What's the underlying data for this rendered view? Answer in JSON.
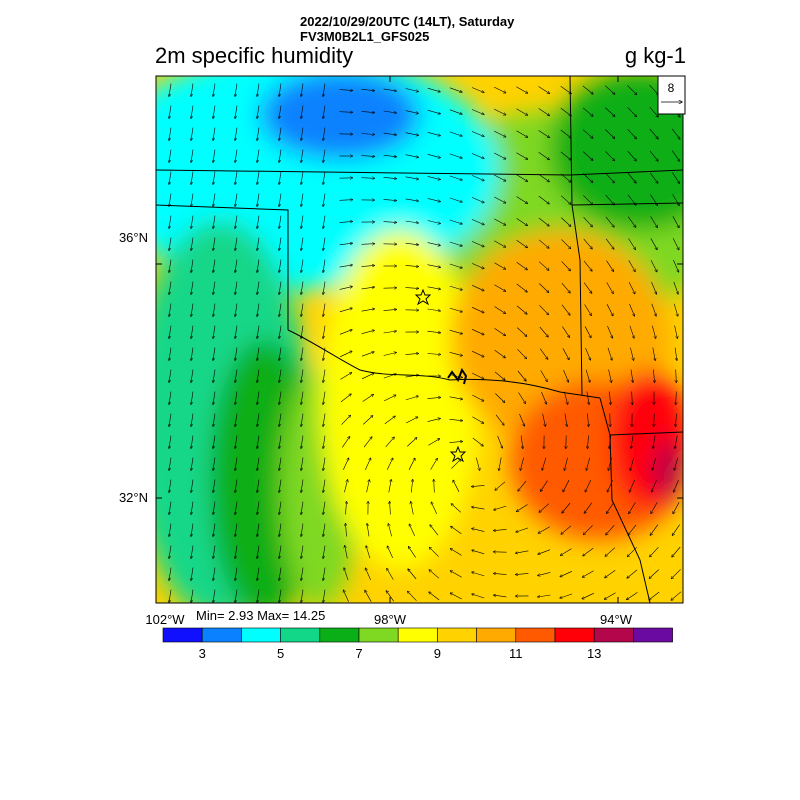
{
  "header": {
    "datetime": "2022/10/29/20UTC (14LT), Saturday",
    "model": "FV3M0B2L1_GFS025"
  },
  "map": {
    "title": "2m specific humidity",
    "units": "g kg-1",
    "stats": "Min= 2.93 Max= 14.25",
    "vector_reference": "8",
    "lat_labels": [
      "36°N",
      "32°N"
    ],
    "lon_labels": [
      "102°W",
      "98°W",
      "94°W"
    ]
  },
  "colorbar": {
    "colors": [
      "#1010ff",
      "#0a82ff",
      "#00ffff",
      "#12d788",
      "#0aae17",
      "#7fd822",
      "#ffff00",
      "#ffd200",
      "#ffaa00",
      "#ff5a00",
      "#ff0008",
      "#b4064a",
      "#6a0aa0"
    ],
    "labels": [
      "3",
      "5",
      "7",
      "9",
      "11",
      "13"
    ]
  }
}
